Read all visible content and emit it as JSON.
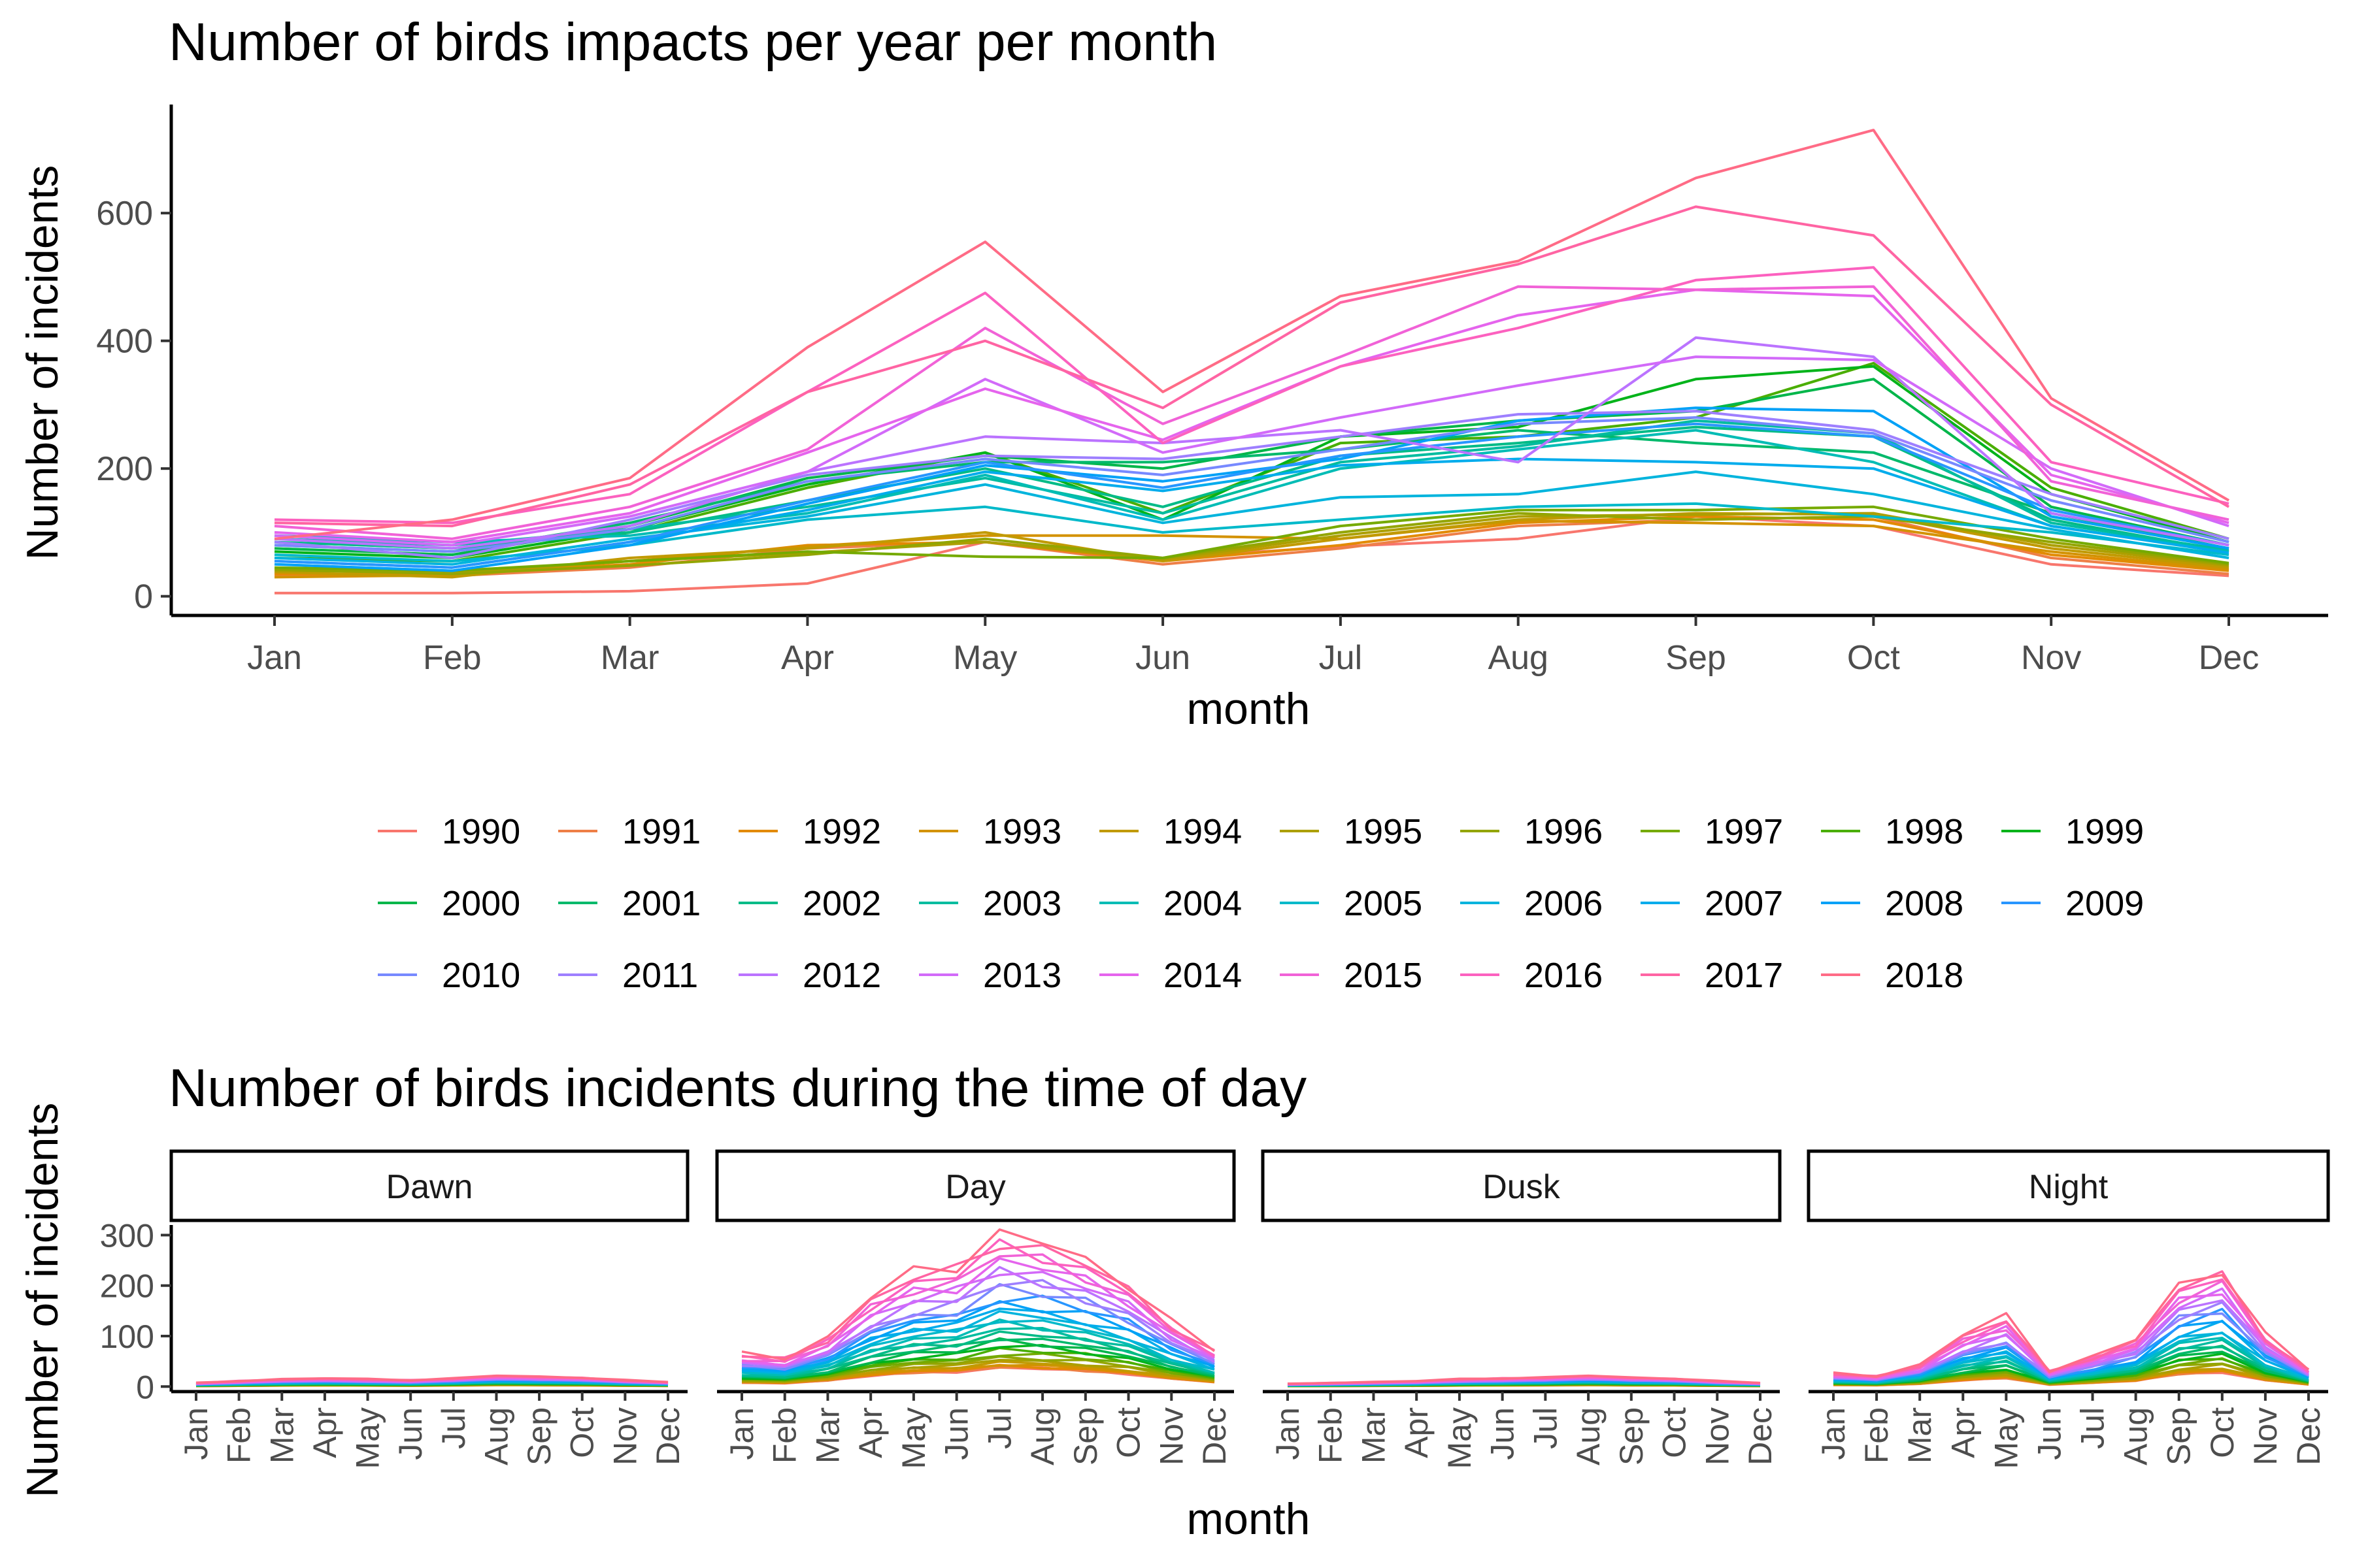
{
  "chart_data": [
    {
      "type": "line",
      "title": "Number of birds impacts per year per month",
      "xlabel": "month",
      "ylabel": "Number of incidents",
      "categories": [
        "Jan",
        "Feb",
        "Mar",
        "Apr",
        "May",
        "Jun",
        "Jul",
        "Aug",
        "Sep",
        "Oct",
        "Nov",
        "Dec"
      ],
      "ylim": [
        -30,
        770
      ],
      "yticks": [
        0,
        200,
        400,
        600
      ],
      "grid": false,
      "legend": "bottom",
      "series": [
        {
          "name": "1990",
          "color": "#F8766D",
          "values": [
            5,
            5,
            8,
            20,
            85,
            60,
            78,
            90,
            125,
            110,
            50,
            32
          ]
        },
        {
          "name": "1991",
          "color": "#EE7F47",
          "values": [
            32,
            32,
            45,
            75,
            85,
            50,
            75,
            110,
            120,
            125,
            60,
            35
          ]
        },
        {
          "name": "1992",
          "color": "#E28A00",
          "values": [
            35,
            35,
            50,
            80,
            85,
            55,
            80,
            115,
            125,
            120,
            65,
            40
          ]
        },
        {
          "name": "1993",
          "color": "#D39200",
          "values": [
            30,
            33,
            55,
            78,
            95,
            95,
            90,
            118,
            115,
            110,
            70,
            42
          ]
        },
        {
          "name": "1994",
          "color": "#C19A00",
          "values": [
            38,
            30,
            60,
            75,
            100,
            55,
            90,
            120,
            130,
            128,
            75,
            45
          ]
        },
        {
          "name": "1995",
          "color": "#AC9F00",
          "values": [
            40,
            38,
            55,
            68,
            85,
            58,
            95,
            125,
            128,
            130,
            80,
            48
          ]
        },
        {
          "name": "1996",
          "color": "#93A500",
          "values": [
            42,
            35,
            48,
            65,
            90,
            60,
            100,
            130,
            120,
            125,
            85,
            50
          ]
        },
        {
          "name": "1997",
          "color": "#75AA00",
          "values": [
            45,
            40,
            55,
            70,
            62,
            60,
            110,
            135,
            135,
            140,
            90,
            52
          ]
        },
        {
          "name": "1998",
          "color": "#4AAE00",
          "values": [
            60,
            55,
            100,
            170,
            225,
            130,
            240,
            250,
            280,
            365,
            170,
            90
          ]
        },
        {
          "name": "1999",
          "color": "#00B31A",
          "values": [
            70,
            60,
            105,
            175,
            225,
            120,
            250,
            265,
            340,
            360,
            160,
            85
          ]
        },
        {
          "name": "2000",
          "color": "#00B64A",
          "values": [
            75,
            65,
            110,
            185,
            220,
            200,
            250,
            275,
            290,
            340,
            140,
            80
          ]
        },
        {
          "name": "2001",
          "color": "#00B96B",
          "values": [
            80,
            70,
            115,
            180,
            210,
            210,
            230,
            260,
            240,
            225,
            130,
            75
          ]
        },
        {
          "name": "2002",
          "color": "#00BB87",
          "values": [
            85,
            75,
            100,
            150,
            200,
            140,
            220,
            240,
            265,
            250,
            120,
            70
          ]
        },
        {
          "name": "2003",
          "color": "#00BC9F",
          "values": [
            90,
            80,
            105,
            140,
            185,
            130,
            210,
            235,
            275,
            255,
            115,
            72
          ]
        },
        {
          "name": "2004",
          "color": "#00BCB5",
          "values": [
            95,
            85,
            95,
            130,
            190,
            120,
            200,
            230,
            260,
            210,
            110,
            70
          ]
        },
        {
          "name": "2005",
          "color": "#00B9CA",
          "values": [
            65,
            55,
            80,
            120,
            140,
            100,
            120,
            140,
            145,
            125,
            100,
            65
          ]
        },
        {
          "name": "2006",
          "color": "#00B4DD",
          "values": [
            60,
            50,
            90,
            125,
            175,
            115,
            155,
            160,
            195,
            160,
            105,
            60
          ]
        },
        {
          "name": "2007",
          "color": "#00ACEC",
          "values": [
            55,
            45,
            85,
            135,
            195,
            165,
            205,
            215,
            210,
            200,
            110,
            68
          ]
        },
        {
          "name": "2008",
          "color": "#00A1F7",
          "values": [
            50,
            40,
            80,
            145,
            205,
            180,
            215,
            275,
            295,
            290,
            125,
            75
          ]
        },
        {
          "name": "2009",
          "color": "#2896FF",
          "values": [
            55,
            45,
            85,
            150,
            210,
            170,
            220,
            250,
            270,
            250,
            135,
            80
          ]
        },
        {
          "name": "2010",
          "color": "#7789FF",
          "values": [
            80,
            70,
            105,
            180,
            215,
            190,
            230,
            270,
            280,
            255,
            150,
            85
          ]
        },
        {
          "name": "2011",
          "color": "#9E7FFF",
          "values": [
            85,
            60,
            120,
            190,
            220,
            215,
            250,
            285,
            290,
            260,
            160,
            90
          ]
        },
        {
          "name": "2012",
          "color": "#BB73FF",
          "values": [
            90,
            75,
            110,
            195,
            250,
            240,
            260,
            210,
            405,
            375,
            130,
            80
          ]
        },
        {
          "name": "2013",
          "color": "#D26AF9",
          "values": [
            95,
            80,
            125,
            195,
            340,
            225,
            280,
            330,
            375,
            370,
            200,
            110
          ]
        },
        {
          "name": "2014",
          "color": "#E564ED",
          "values": [
            100,
            85,
            130,
            225,
            325,
            245,
            360,
            440,
            480,
            470,
            190,
            115
          ]
        },
        {
          "name": "2015",
          "color": "#F162D7",
          "values": [
            110,
            90,
            140,
            230,
            420,
            270,
            375,
            485,
            480,
            485,
            180,
            120
          ]
        },
        {
          "name": "2016",
          "color": "#FC61BF",
          "values": [
            120,
            115,
            160,
            320,
            475,
            240,
            360,
            420,
            495,
            515,
            210,
            145
          ]
        },
        {
          "name": "2017",
          "color": "#FF64A3",
          "values": [
            115,
            110,
            175,
            320,
            400,
            295,
            460,
            520,
            610,
            565,
            300,
            140
          ]
        },
        {
          "name": "2018",
          "color": "#FF6B86",
          "values": [
            90,
            120,
            185,
            390,
            555,
            320,
            470,
            525,
            655,
            730,
            310,
            150
          ]
        }
      ]
    },
    {
      "type": "line",
      "title": "Number of birds incidents during the time of day",
      "xlabel": "month",
      "ylabel": "Number of incidents",
      "categories": [
        "Jan",
        "Feb",
        "Mar",
        "Apr",
        "May",
        "Jun",
        "Jul",
        "Aug",
        "Sep",
        "Oct",
        "Nov",
        "Dec"
      ],
      "ylim": [
        -10,
        320
      ],
      "yticks": [
        0,
        100,
        200,
        300
      ],
      "facets": [
        "Dawn",
        "Day",
        "Dusk",
        "Night"
      ],
      "facet_profiles": {
        "Dawn": [
          4,
          6,
          8,
          9,
          8,
          7,
          9,
          12,
          11,
          10,
          7,
          5
        ],
        "Day": [
          40,
          35,
          60,
          110,
          140,
          150,
          190,
          180,
          160,
          130,
          80,
          45
        ],
        "Dusk": [
          3,
          4,
          5,
          6,
          8,
          9,
          10,
          12,
          10,
          9,
          6,
          4
        ],
        "Night": [
          15,
          12,
          25,
          60,
          80,
          18,
          35,
          55,
          120,
          140,
          60,
          20
        ]
      },
      "facet_peaks": {
        "Dawn": 22,
        "Day": 305,
        "Dusk": 22,
        "Night": 240
      }
    }
  ]
}
